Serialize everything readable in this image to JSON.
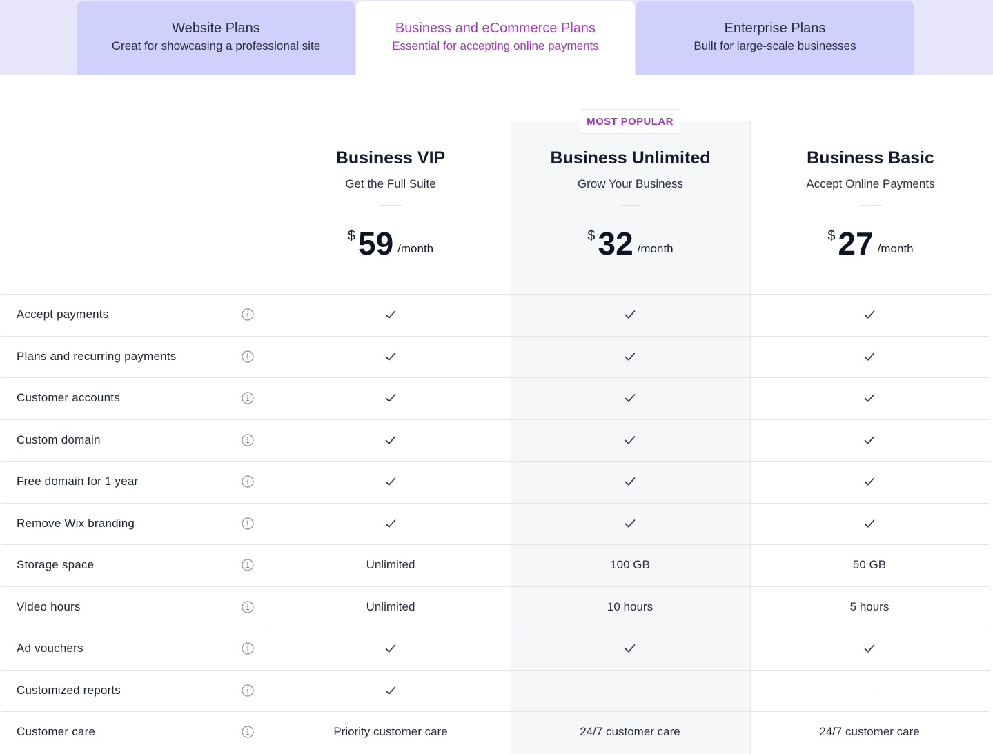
{
  "tabs": [
    {
      "title": "Website Plans",
      "subtitle": "Great for showcasing a professional site",
      "active": false
    },
    {
      "title": "Business and eCommerce Plans",
      "subtitle": "Essential for accepting online payments",
      "active": true
    },
    {
      "title": "Enterprise Plans",
      "subtitle": "Built for large-scale businesses",
      "active": false
    }
  ],
  "badge": "MOST POPULAR",
  "plans": [
    {
      "name": "Business VIP",
      "subtitle": "Get the Full Suite",
      "currency": "$",
      "price": "59",
      "period": "/month"
    },
    {
      "name": "Business Unlimited",
      "subtitle": "Grow Your Business",
      "currency": "$",
      "price": "32",
      "period": "/month"
    },
    {
      "name": "Business Basic",
      "subtitle": "Accept Online Payments",
      "currency": "$",
      "price": "27",
      "period": "/month"
    }
  ],
  "features": [
    {
      "label": "Accept payments",
      "values": [
        "check",
        "check",
        "check"
      ]
    },
    {
      "label": "Plans and recurring payments",
      "values": [
        "check",
        "check",
        "check"
      ]
    },
    {
      "label": "Customer accounts",
      "values": [
        "check",
        "check",
        "check"
      ]
    },
    {
      "label": "Custom domain",
      "values": [
        "check",
        "check",
        "check"
      ]
    },
    {
      "label": "Free domain for 1 year",
      "values": [
        "check",
        "check",
        "check"
      ]
    },
    {
      "label": "Remove Wix branding",
      "values": [
        "check",
        "check",
        "check"
      ]
    },
    {
      "label": "Storage space",
      "values": [
        "Unlimited",
        "100 GB",
        "50 GB"
      ]
    },
    {
      "label": "Video hours",
      "values": [
        "Unlimited",
        "10 hours",
        "5 hours"
      ]
    },
    {
      "label": "Ad vouchers",
      "values": [
        "check",
        "check",
        "check"
      ]
    },
    {
      "label": "Customized reports",
      "values": [
        "check",
        "dash",
        "dash"
      ]
    },
    {
      "label": "Customer care",
      "values": [
        "Priority customer care",
        "24/7 customer care",
        "24/7 customer care"
      ]
    }
  ],
  "icons": {
    "feature_info": "info-icon",
    "included": "checkmark-icon",
    "not_included": "dash-icon"
  },
  "colors": {
    "accent": "#a43ab9",
    "tab_band": "#e7e6fd",
    "tab_inactive": "#cfd0fb",
    "highlight_column": "#f6f7f9"
  }
}
